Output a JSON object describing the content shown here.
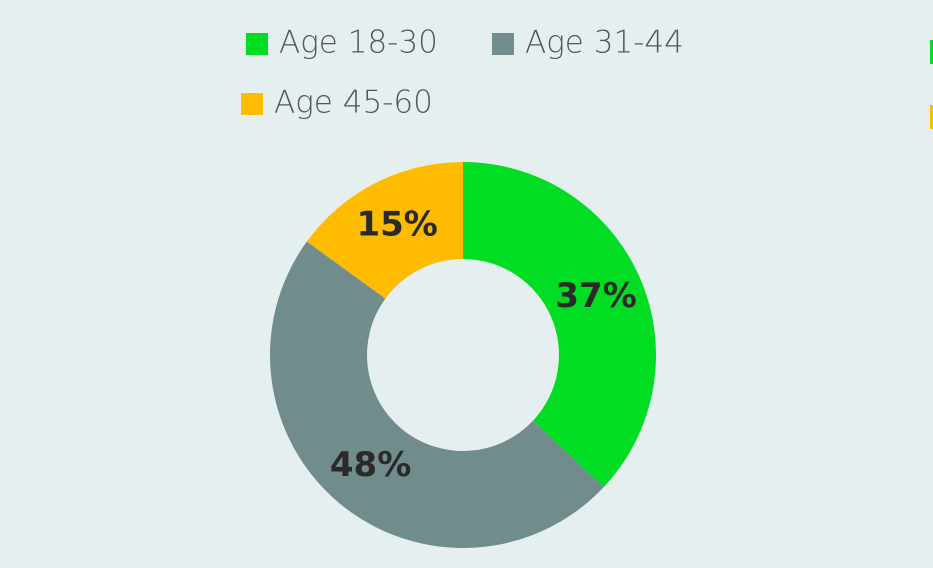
{
  "chart_data": {
    "type": "donut",
    "categories": [
      "Age 18-30",
      "Age 31-44",
      "Age 45-60"
    ],
    "values": [
      37,
      48,
      15
    ],
    "value_labels": [
      "37%",
      "48%",
      "15%"
    ],
    "colors": [
      "#00dd22",
      "#708c8c",
      "#ffbb00"
    ]
  }
}
